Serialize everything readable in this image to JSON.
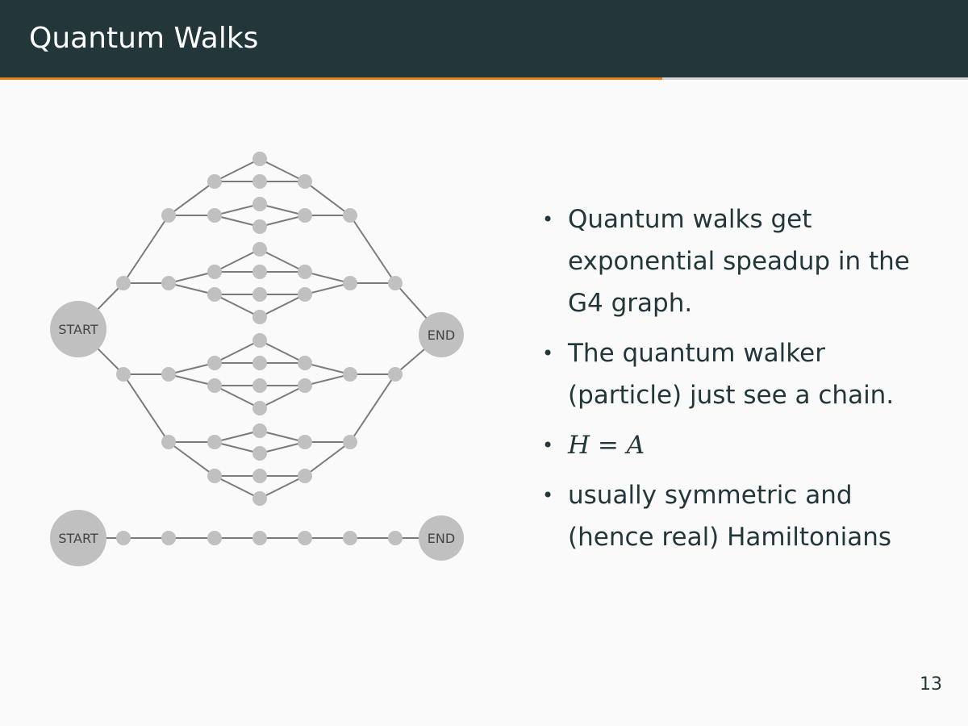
{
  "slide": {
    "title": "Quantum Walks",
    "progress_fraction": 0.684,
    "page_number": "13"
  },
  "graph": {
    "top": {
      "start_label": "START",
      "end_label": "END"
    },
    "bottom": {
      "start_label": "START",
      "end_label": "END"
    }
  },
  "bullets": [
    {
      "text": "Quantum walks get exponential speadup in the G4 graph."
    },
    {
      "text": "The quantum walker (particle) just see a chain."
    },
    {
      "math": {
        "lhs": "H",
        "op": " = ",
        "rhs": "A"
      }
    },
    {
      "text": "usually symmetric and (hence real) Hamiltonians"
    }
  ],
  "colors": {
    "title_bar": "#23373b",
    "accent": "#eb811b",
    "node": "#c0c0c0",
    "edge": "#7a7a7a",
    "text": "#23373b"
  }
}
